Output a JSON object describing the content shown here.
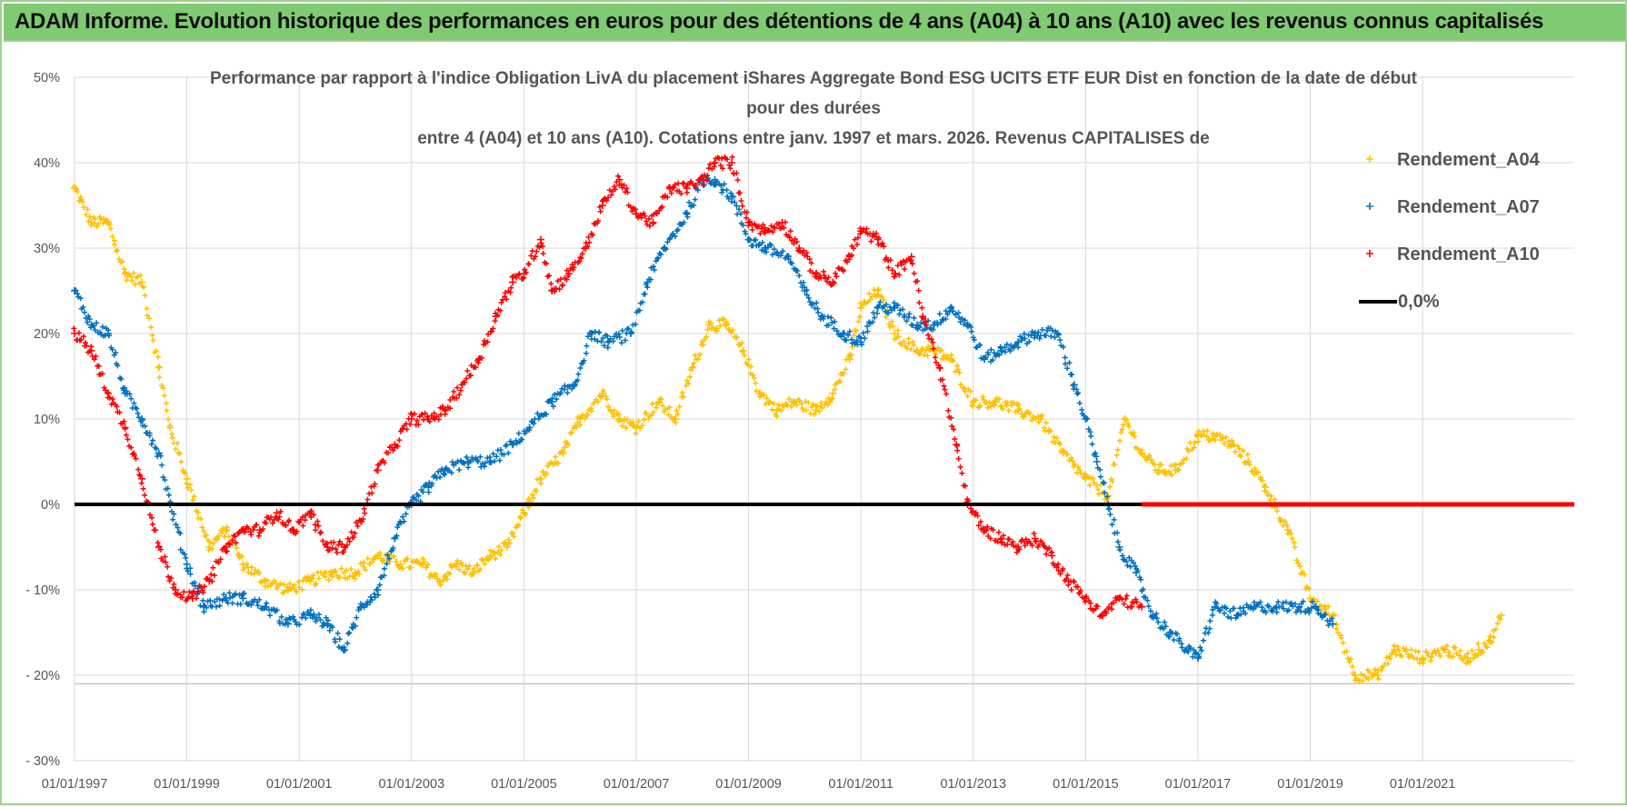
{
  "banner": {
    "title": "ADAM Informe. Evolution historique des performances en euros pour des détentions de 4 ans (A04) à 10 ans (A10) avec les revenus connus capitalisés"
  },
  "colors": {
    "banner_bg": "#7fca72",
    "a04": "#ffc000",
    "a07": "#0070c0",
    "a10": "#ff0000",
    "zero": "#000000"
  },
  "chart_data": {
    "type": "scatter",
    "title_lines": [
      "Performance par rapport à l'indice Obligation LivA  du placement iShares Aggregate  Bond ESG UCITS ETF EUR Dist en fonction de la date de début",
      "pour des durées",
      "entre 4 (A04) et 10 ans (A10). Cotations entre janv. 1997 et mars. 2026. Revenus CAPITALISES de"
    ],
    "x_start": 1997.0,
    "x_end": 2023.7,
    "ylim": [
      -30,
      50
    ],
    "y_ticks": [
      50,
      40,
      30,
      20,
      10,
      0,
      -10,
      -20,
      -30
    ],
    "y_tick_labels": [
      "50%",
      "40%",
      "30%",
      "20%",
      "10%",
      "0%",
      "- 10%",
      "- 20%",
      "- 30%"
    ],
    "x_ticks": [
      1997,
      1999,
      2001,
      2003,
      2005,
      2007,
      2009,
      2011,
      2013,
      2015,
      2017,
      2019,
      2021
    ],
    "x_tick_labels": [
      "01/01/1997",
      "01/01/1999",
      "01/01/2001",
      "01/01/2003",
      "01/01/2005",
      "01/01/2007",
      "01/01/2009",
      "01/01/2011",
      "01/01/2013",
      "01/01/2015",
      "01/01/2017",
      "01/01/2019",
      "01/01/2021"
    ],
    "legend_position": "top-right",
    "series": [
      {
        "name": "Rendement_A04",
        "color": "#ffc000",
        "x": [
          1997.0,
          1997.3,
          1997.6,
          1997.9,
          1998.2,
          1998.5,
          1998.7,
          1999.0,
          1999.4,
          1999.7,
          2000.0,
          2000.4,
          2000.8,
          2001.2,
          2001.6,
          2002.0,
          2002.4,
          2002.8,
          2003.2,
          2003.5,
          2003.8,
          2004.1,
          2004.4,
          2004.7,
          2005.0,
          2005.3,
          2005.7,
          2006.0,
          2006.4,
          2006.7,
          2007.0,
          2007.4,
          2007.7,
          2008.0,
          2008.3,
          2008.6,
          2008.9,
          2009.2,
          2009.5,
          2009.8,
          2010.2,
          2010.5,
          2010.8,
          2011.0,
          2011.3,
          2011.6,
          2012.0,
          2012.3,
          2012.6,
          2013.0,
          2013.4,
          2013.8,
          2014.2,
          2014.6,
          2015.0,
          2015.4,
          2015.7,
          2016.0,
          2016.3,
          2016.6,
          2017.0,
          2017.3,
          2017.6,
          2017.9,
          2018.2,
          2018.6,
          2019.0,
          2019.4,
          2019.8,
          2020.2,
          2020.5,
          2021.0,
          2021.4,
          2021.8,
          2022.0,
          2022.2,
          2022.4
        ],
        "y": [
          37,
          33,
          33,
          27,
          26,
          16,
          9,
          3,
          -5,
          -3,
          -7,
          -9,
          -10,
          -9,
          -8,
          -8,
          -6,
          -7,
          -7,
          -9,
          -7,
          -8,
          -6,
          -5,
          -1,
          3,
          6,
          10,
          13,
          10,
          9,
          12,
          10,
          16,
          21,
          21,
          18,
          13,
          11,
          12,
          11,
          13,
          17,
          23,
          25,
          20,
          18,
          18,
          17,
          12,
          12,
          11,
          10,
          6,
          3,
          1,
          10,
          6,
          4,
          4,
          8,
          8,
          7,
          5,
          2,
          -3,
          -11,
          -13,
          -20,
          -20,
          -17,
          -18,
          -17,
          -18,
          -17,
          -16,
          -13
        ]
      },
      {
        "name": "Rendement_A07",
        "color": "#0070c0",
        "x": [
          1997.0,
          1997.3,
          1997.6,
          1997.9,
          1998.2,
          1998.5,
          1998.7,
          1999.0,
          1999.3,
          1999.7,
          2000.0,
          2000.4,
          2000.8,
          2001.2,
          2001.5,
          2001.8,
          2002.1,
          2002.4,
          2002.7,
          2003.0,
          2003.3,
          2003.6,
          2004.0,
          2004.4,
          2004.8,
          2005.1,
          2005.5,
          2005.9,
          2006.2,
          2006.5,
          2006.9,
          2007.2,
          2007.5,
          2007.9,
          2008.2,
          2008.4,
          2008.7,
          2009.0,
          2009.3,
          2009.7,
          2010.0,
          2010.3,
          2010.7,
          2011.0,
          2011.3,
          2011.6,
          2012.0,
          2012.3,
          2012.6,
          2012.9,
          2013.2,
          2013.5,
          2013.8,
          2014.1,
          2014.5,
          2014.8,
          2015.0,
          2015.2,
          2015.4,
          2015.6,
          2015.9,
          2016.2,
          2016.5,
          2016.8,
          2017.0,
          2017.3,
          2017.7,
          2018.0,
          2018.4,
          2018.8,
          2019.1,
          2019.4
        ],
        "y": [
          25,
          21,
          20,
          13,
          10,
          6,
          0,
          -7,
          -12,
          -11,
          -11,
          -12,
          -14,
          -13,
          -14,
          -17,
          -12,
          -10,
          -4,
          0,
          2,
          4,
          5,
          5,
          7,
          9,
          12,
          14,
          20,
          19,
          20,
          26,
          30,
          34,
          38,
          38,
          36,
          31,
          30,
          29,
          25,
          22,
          20,
          19,
          23,
          23,
          21,
          21,
          23,
          21,
          17,
          18,
          19,
          20,
          20,
          14,
          10,
          5,
          0,
          -5,
          -8,
          -13,
          -15,
          -17,
          -18,
          -12,
          -13,
          -12,
          -12,
          -12,
          -12,
          -14
        ]
      },
      {
        "name": "Rendement_A10",
        "color": "#ff0000",
        "x": [
          1997.0,
          1997.3,
          1997.6,
          1997.9,
          1998.2,
          1998.5,
          1998.8,
          1999.1,
          1999.4,
          1999.7,
          2000.0,
          2000.3,
          2000.6,
          2000.9,
          2001.2,
          2001.5,
          2001.8,
          2002.1,
          2002.4,
          2002.7,
          2003.0,
          2003.3,
          2003.6,
          2003.9,
          2004.2,
          2004.5,
          2004.8,
          2005.0,
          2005.3,
          2005.5,
          2005.8,
          2006.1,
          2006.4,
          2006.7,
          2007.0,
          2007.3,
          2007.6,
          2007.9,
          2008.2,
          2008.4,
          2008.7,
          2009.0,
          2009.3,
          2009.6,
          2009.9,
          2010.2,
          2010.5,
          2010.8,
          2011.0,
          2011.3,
          2011.6,
          2011.9,
          2012.1,
          2012.4,
          2012.7,
          2012.9,
          2013.2,
          2013.5,
          2013.8,
          2014.1,
          2014.4,
          2014.7,
          2015.0,
          2015.3,
          2015.6,
          2016.0
        ],
        "y": [
          20,
          18,
          13,
          9,
          3,
          -5,
          -10,
          -11,
          -9,
          -5,
          -3,
          -3,
          -1,
          -3,
          -1,
          -5,
          -5,
          -2,
          4,
          7,
          10,
          10,
          11,
          14,
          17,
          22,
          26,
          27,
          31,
          25,
          27,
          30,
          35,
          38,
          34,
          33,
          37,
          37,
          38,
          40,
          40,
          33,
          32,
          33,
          30,
          27,
          26,
          29,
          32,
          31,
          27,
          29,
          22,
          16,
          7,
          0,
          -3,
          -4,
          -5,
          -4,
          -6,
          -9,
          -11,
          -13,
          -11,
          -12
        ]
      },
      {
        "name": "0,0%",
        "color": "#000000",
        "x": [
          1997.0,
          2023.7
        ],
        "y": [
          0,
          0
        ]
      }
    ]
  }
}
